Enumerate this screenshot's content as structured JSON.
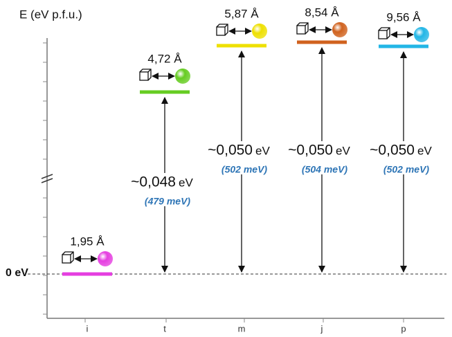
{
  "axis": {
    "y_label": "E (eV p.f.u.)",
    "zero_label": "0 eV"
  },
  "states": [
    {
      "category": "i",
      "distance": "1,95 Å",
      "color": "#e53ee0"
    },
    {
      "category": "t",
      "distance": "4,72 Å",
      "color": "#66cc22",
      "energy": "~0,048",
      "unit": "eV",
      "mev": "(479 meV)"
    },
    {
      "category": "m",
      "distance": "5,87 Å",
      "color": "#eee000",
      "energy": "~0,050",
      "unit": "eV",
      "mev": "(502 meV)"
    },
    {
      "category": "j",
      "distance": "8,54 Å",
      "color": "#d0621e",
      "energy": "~0,050",
      "unit": "eV",
      "mev": "(504 meV)"
    },
    {
      "category": "p",
      "distance": "9,56 Å",
      "color": "#22b6e6",
      "energy": "~0,050",
      "unit": "eV",
      "mev": "(502 meV)"
    }
  ]
}
